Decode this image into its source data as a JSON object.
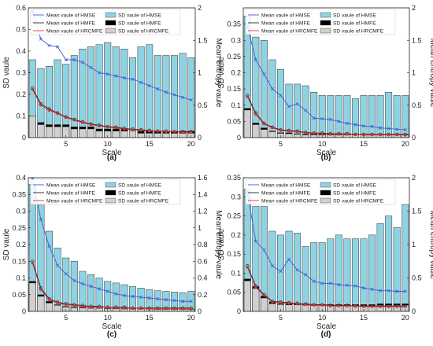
{
  "figure": {
    "panels": [
      {
        "label": "(a)"
      },
      {
        "label": "(b)"
      },
      {
        "label": "(c)"
      },
      {
        "label": "(d)"
      }
    ]
  },
  "colors": {
    "hmse_bar": "#8fd3e3",
    "hmfe_bar": "#000000",
    "hrcmfe_bar": "#d0d0d0",
    "hmse_line": "#3b5bd6",
    "hmfe_line": "#222222",
    "hrcmfe_line": "#e03030",
    "axis": "#222222"
  },
  "chart_data": [
    {
      "type": "bar",
      "panel": "(a)",
      "xlabel": "Scale",
      "ylabel": "SD vaule",
      "y2label": "Mean entropy vaule",
      "x": [
        1,
        2,
        3,
        4,
        5,
        6,
        7,
        8,
        9,
        10,
        11,
        12,
        13,
        14,
        15,
        16,
        17,
        18,
        19,
        20
      ],
      "xticks": [
        5,
        10,
        15,
        20
      ],
      "ylim": [
        0,
        0.6
      ],
      "yticks": [
        0,
        0.1,
        0.2,
        0.3,
        0.4,
        0.5,
        0.6
      ],
      "y2lim": [
        0,
        2
      ],
      "y2ticks": [
        0,
        0.5,
        1,
        1.5,
        2
      ],
      "legend": "top",
      "series": [
        {
          "name": "SD vaule of HMSE",
          "axis": "left",
          "kind": "bar",
          "values": [
            0.36,
            0.32,
            0.33,
            0.36,
            0.34,
            0.38,
            0.41,
            0.42,
            0.43,
            0.44,
            0.42,
            0.41,
            0.37,
            0.42,
            0.43,
            0.38,
            0.38,
            0.38,
            0.39,
            0.37
          ]
        },
        {
          "name": "SD vaule of HMFE",
          "axis": "left",
          "kind": "bar",
          "values": [
            0.1,
            0.07,
            0.06,
            0.06,
            0.06,
            0.05,
            0.05,
            0.05,
            0.04,
            0.04,
            0.04,
            0.04,
            0.03,
            0.03,
            0.03,
            0.03,
            0.03,
            0.03,
            0.03,
            0.03
          ]
        },
        {
          "name": "SD vaule of HRCMFE",
          "axis": "left",
          "kind": "bar",
          "values": [
            0.1,
            0.06,
            0.05,
            0.05,
            0.05,
            0.04,
            0.04,
            0.04,
            0.03,
            0.03,
            0.03,
            0.03,
            0.03,
            0.02,
            0.02,
            0.02,
            0.02,
            0.02,
            0.02,
            0.02
          ]
        },
        {
          "name": "Mean vaule of HMSE",
          "axis": "right",
          "kind": "line",
          "marker": "x",
          "values": [
            1.95,
            1.52,
            1.42,
            1.4,
            1.2,
            1.2,
            1.16,
            1.08,
            1.0,
            0.98,
            0.95,
            0.92,
            0.9,
            0.85,
            0.8,
            0.75,
            0.7,
            0.66,
            0.62,
            0.58
          ]
        },
        {
          "name": "Mean vaule of HMFE",
          "axis": "right",
          "kind": "line",
          "marker": "o",
          "values": [
            0.76,
            0.52,
            0.44,
            0.38,
            0.32,
            0.28,
            0.24,
            0.21,
            0.19,
            0.17,
            0.16,
            0.14,
            0.13,
            0.12,
            0.11,
            0.1,
            0.1,
            0.09,
            0.09,
            0.09
          ]
        },
        {
          "name": "Mean vaule of HRCMFE",
          "axis": "right",
          "kind": "line",
          "marker": "*",
          "values": [
            0.74,
            0.5,
            0.42,
            0.37,
            0.31,
            0.27,
            0.23,
            0.2,
            0.18,
            0.16,
            0.15,
            0.13,
            0.12,
            0.11,
            0.1,
            0.1,
            0.09,
            0.09,
            0.08,
            0.08
          ]
        }
      ]
    },
    {
      "type": "bar",
      "panel": "(b)",
      "xlabel": "Scale",
      "ylabel": "SD vaule",
      "y2label": "Mean entropy vaule",
      "x": [
        1,
        2,
        3,
        4,
        5,
        6,
        7,
        8,
        9,
        10,
        11,
        12,
        13,
        14,
        15,
        16,
        17,
        18,
        19,
        20
      ],
      "xticks": [
        5,
        10,
        15,
        20
      ],
      "ylim": [
        0,
        0.4
      ],
      "yticks": [
        0,
        0.05,
        0.1,
        0.15,
        0.2,
        0.25,
        0.3,
        0.35
      ],
      "y2lim": [
        0,
        2
      ],
      "y2ticks": [
        0,
        0.5,
        1,
        1.5,
        2
      ],
      "legend": "top",
      "series": [
        {
          "name": "SD vaule of HMSE",
          "axis": "left",
          "kind": "bar",
          "values": [
            0.375,
            0.31,
            0.3,
            0.24,
            0.21,
            0.165,
            0.165,
            0.16,
            0.14,
            0.13,
            0.13,
            0.13,
            0.13,
            0.12,
            0.13,
            0.13,
            0.13,
            0.14,
            0.13,
            0.13
          ]
        },
        {
          "name": "SD vaule of HMFE",
          "axis": "left",
          "kind": "bar",
          "values": [
            0.09,
            0.045,
            0.03,
            0.02,
            0.015,
            0.015,
            0.012,
            0.01,
            0.01,
            0.01,
            0.01,
            0.01,
            0.01,
            0.01,
            0.01,
            0.01,
            0.01,
            0.01,
            0.01,
            0.01
          ]
        },
        {
          "name": "SD vaule of HRCMFE",
          "axis": "left",
          "kind": "bar",
          "values": [
            0.085,
            0.04,
            0.025,
            0.018,
            0.013,
            0.012,
            0.01,
            0.008,
            0.008,
            0.008,
            0.008,
            0.008,
            0.008,
            0.008,
            0.008,
            0.008,
            0.008,
            0.008,
            0.008,
            0.008
          ]
        },
        {
          "name": "Mean vaule of HMSE",
          "axis": "right",
          "kind": "line",
          "marker": "x",
          "values": [
            1.72,
            1.2,
            0.98,
            0.75,
            0.65,
            0.48,
            0.52,
            0.42,
            0.3,
            0.29,
            0.28,
            0.25,
            0.22,
            0.2,
            0.18,
            0.17,
            0.15,
            0.14,
            0.13,
            0.12
          ]
        },
        {
          "name": "Mean vaule of HMFE",
          "axis": "right",
          "kind": "line",
          "marker": "o",
          "values": [
            0.65,
            0.38,
            0.22,
            0.16,
            0.12,
            0.11,
            0.1,
            0.08,
            0.07,
            0.07,
            0.06,
            0.06,
            0.06,
            0.05,
            0.05,
            0.05,
            0.05,
            0.05,
            0.05,
            0.05
          ]
        },
        {
          "name": "Mean vaule of HRCMFE",
          "axis": "right",
          "kind": "line",
          "marker": "*",
          "values": [
            0.63,
            0.36,
            0.21,
            0.15,
            0.11,
            0.1,
            0.09,
            0.07,
            0.06,
            0.06,
            0.05,
            0.05,
            0.05,
            0.05,
            0.04,
            0.04,
            0.04,
            0.04,
            0.04,
            0.04
          ]
        }
      ]
    },
    {
      "type": "bar",
      "panel": "(c)",
      "xlabel": "Scale",
      "ylabel": "SD vaule",
      "y2label": "Mean entropy vaule",
      "x": [
        1,
        2,
        3,
        4,
        5,
        6,
        7,
        8,
        9,
        10,
        11,
        12,
        13,
        14,
        15,
        16,
        17,
        18,
        19,
        20
      ],
      "xticks": [
        5,
        10,
        15,
        20
      ],
      "ylim": [
        0,
        0.4
      ],
      "yticks": [
        0,
        0.05,
        0.1,
        0.15,
        0.2,
        0.25,
        0.3,
        0.35,
        0.4
      ],
      "y2lim": [
        0,
        1.6
      ],
      "y2ticks": [
        0,
        0.2,
        0.4,
        0.6,
        0.8,
        1,
        1.2,
        1.4,
        1.6
      ],
      "legend": "top",
      "series": [
        {
          "name": "SD vaule of HMSE",
          "axis": "left",
          "kind": "bar",
          "values": [
            0.38,
            0.32,
            0.24,
            0.19,
            0.16,
            0.15,
            0.12,
            0.11,
            0.1,
            0.09,
            0.085,
            0.08,
            0.075,
            0.07,
            0.065,
            0.062,
            0.06,
            0.058,
            0.056,
            0.06
          ]
        },
        {
          "name": "SD vaule of HMFE",
          "axis": "left",
          "kind": "bar",
          "values": [
            0.09,
            0.05,
            0.03,
            0.02,
            0.015,
            0.013,
            0.012,
            0.01,
            0.01,
            0.009,
            0.009,
            0.008,
            0.008,
            0.008,
            0.008,
            0.007,
            0.007,
            0.007,
            0.007,
            0.007
          ]
        },
        {
          "name": "SD vaule of HRCMFE",
          "axis": "left",
          "kind": "bar",
          "values": [
            0.085,
            0.045,
            0.025,
            0.018,
            0.013,
            0.011,
            0.01,
            0.009,
            0.009,
            0.008,
            0.008,
            0.007,
            0.007,
            0.007,
            0.007,
            0.006,
            0.006,
            0.006,
            0.006,
            0.006
          ]
        },
        {
          "name": "Mean vaule of HMSE",
          "axis": "right",
          "kind": "line",
          "marker": "x",
          "values": [
            1.6,
            1.1,
            0.78,
            0.55,
            0.45,
            0.37,
            0.33,
            0.3,
            0.27,
            0.24,
            0.21,
            0.19,
            0.18,
            0.17,
            0.16,
            0.15,
            0.14,
            0.13,
            0.12,
            0.12
          ]
        },
        {
          "name": "Mean vaule of HMFE",
          "axis": "right",
          "kind": "line",
          "marker": "o",
          "values": [
            0.6,
            0.28,
            0.15,
            0.11,
            0.09,
            0.08,
            0.07,
            0.06,
            0.06,
            0.05,
            0.05,
            0.05,
            0.04,
            0.04,
            0.04,
            0.04,
            0.04,
            0.04,
            0.04,
            0.04
          ]
        },
        {
          "name": "Mean vaule of HRCMFE",
          "axis": "right",
          "kind": "line",
          "marker": "*",
          "values": [
            0.58,
            0.26,
            0.14,
            0.1,
            0.08,
            0.07,
            0.06,
            0.05,
            0.05,
            0.05,
            0.04,
            0.04,
            0.04,
            0.04,
            0.03,
            0.03,
            0.03,
            0.03,
            0.03,
            0.03
          ]
        }
      ]
    },
    {
      "type": "bar",
      "panel": "(d)",
      "xlabel": "Scale",
      "ylabel": "SD vaule",
      "y2label": "Mean entropy vaule",
      "x": [
        1,
        2,
        3,
        4,
        5,
        6,
        7,
        8,
        9,
        10,
        11,
        12,
        13,
        14,
        15,
        16,
        17,
        18,
        19,
        20
      ],
      "xticks": [
        5,
        10,
        15,
        20
      ],
      "ylim": [
        0,
        0.35
      ],
      "yticks": [
        0,
        0.05,
        0.1,
        0.15,
        0.2,
        0.25,
        0.3,
        0.35
      ],
      "y2lim": [
        0,
        2
      ],
      "y2ticks": [
        0,
        0.5,
        1,
        1.5,
        2
      ],
      "legend": "top",
      "series": [
        {
          "name": "SD vaule of HMSE",
          "axis": "left",
          "kind": "bar",
          "values": [
            0.32,
            0.275,
            0.275,
            0.21,
            0.2,
            0.21,
            0.205,
            0.17,
            0.18,
            0.18,
            0.19,
            0.2,
            0.19,
            0.19,
            0.19,
            0.2,
            0.23,
            0.25,
            0.22,
            0.28
          ]
        },
        {
          "name": "SD vaule of HMFE",
          "axis": "left",
          "kind": "bar",
          "values": [
            0.085,
            0.065,
            0.04,
            0.025,
            0.02,
            0.02,
            0.02,
            0.02,
            0.018,
            0.018,
            0.018,
            0.018,
            0.018,
            0.018,
            0.018,
            0.018,
            0.02,
            0.02,
            0.02,
            0.02
          ]
        },
        {
          "name": "SD vaule of HRCMFE",
          "axis": "left",
          "kind": "bar",
          "values": [
            0.08,
            0.06,
            0.035,
            0.02,
            0.018,
            0.017,
            0.017,
            0.016,
            0.015,
            0.015,
            0.015,
            0.015,
            0.015,
            0.015,
            0.015,
            0.015,
            0.016,
            0.016,
            0.016,
            0.016
          ]
        },
        {
          "name": "Mean vaule of HMSE",
          "axis": "right",
          "kind": "line",
          "marker": "x",
          "values": [
            1.78,
            1.05,
            0.92,
            0.68,
            0.6,
            0.78,
            0.62,
            0.55,
            0.45,
            0.42,
            0.42,
            0.4,
            0.39,
            0.38,
            0.35,
            0.33,
            0.31,
            0.31,
            0.3,
            0.3
          ]
        },
        {
          "name": "Mean vaule of HMFE",
          "axis": "right",
          "kind": "line",
          "marker": "o",
          "values": [
            0.68,
            0.38,
            0.25,
            0.15,
            0.14,
            0.13,
            0.12,
            0.11,
            0.1,
            0.1,
            0.09,
            0.09,
            0.09,
            0.08,
            0.08,
            0.08,
            0.08,
            0.08,
            0.08,
            0.08
          ]
        },
        {
          "name": "Mean vaule of HRCMFE",
          "axis": "right",
          "kind": "line",
          "marker": "*",
          "values": [
            0.66,
            0.36,
            0.24,
            0.14,
            0.13,
            0.12,
            0.11,
            0.1,
            0.09,
            0.09,
            0.08,
            0.08,
            0.08,
            0.08,
            0.07,
            0.07,
            0.07,
            0.07,
            0.07,
            0.07
          ]
        }
      ]
    }
  ]
}
